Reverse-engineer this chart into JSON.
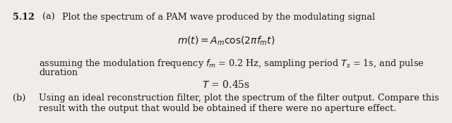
{
  "background_color": "#f0ede8",
  "text_color": "#1a1a1a",
  "problem_number": "5.12",
  "part_a_label": "(a)",
  "part_a_text": "Plot the spectrum of a PAM wave produced by the modulating signal",
  "formula_mt": "$m(t) = A_m \\cos(2\\pi f_m t)$",
  "part_a_body1": "assuming the modulation frequency $f_m$ = 0.2 Hz, sampling period $T_s$ = 1s, and pulse",
  "part_a_body2": "duration",
  "formula_T": "$T$ = 0.45s",
  "part_b_label": "(b)",
  "part_b_text1": "Using an ideal reconstruction filter, plot the spectrum of the filter output. Compare this",
  "part_b_text2": "result with the output that would be obtained if there were no aperture effect.",
  "fig_width": 6.4,
  "fig_height": 1.75,
  "dpi": 100
}
